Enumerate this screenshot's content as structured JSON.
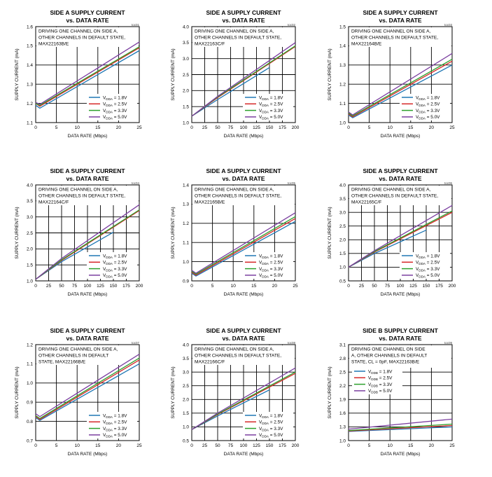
{
  "chart_data": [
    {
      "type": "line",
      "title": "SIDE A SUPPLY CURRENT",
      "subtitle": "vs. DATA RATE",
      "tag": "toc01",
      "annotation": [
        "DRIVING ONE CHANNEL ON  SIDE A,",
        "OTHER CHANNELS IN DEFAULT STATE,",
        "MAX22163B/E"
      ],
      "xlabel": "DATA RATE (Mbps)",
      "ylabel": "SUPPLY CURRENT (mA)",
      "xlim": [
        0,
        25
      ],
      "ylim": [
        1.1,
        1.6
      ],
      "xticks": [
        "0",
        "5",
        "10",
        "15",
        "20",
        "25"
      ],
      "yticks": [
        "1.1",
        "1.2",
        "1.3",
        "1.4",
        "1.5",
        "1.6"
      ],
      "series": [
        {
          "name": "VDDA = 1.8V",
          "sub": "DDA",
          "val": "1.8V",
          "color": "#1f77b4",
          "x": [
            0,
            1,
            25
          ],
          "y": [
            1.19,
            1.175,
            1.475
          ]
        },
        {
          "name": "VDDA = 2.5V",
          "sub": "DDA",
          "val": "2.5V",
          "color": "#d62728",
          "x": [
            0,
            1,
            25
          ],
          "y": [
            1.2,
            1.185,
            1.49
          ]
        },
        {
          "name": "VDDA = 3.3V",
          "sub": "DDA",
          "val": "3.3V",
          "color": "#2ca02c",
          "x": [
            0,
            1,
            25
          ],
          "y": [
            1.2,
            1.19,
            1.495
          ]
        },
        {
          "name": "VDDA = 5.0V",
          "sub": "DDA",
          "val": "5.0V",
          "color": "#7b3fa0",
          "x": [
            0,
            1,
            25
          ],
          "y": [
            1.205,
            1.195,
            1.52
          ]
        }
      ]
    },
    {
      "type": "line",
      "title": "SIDE A SUPPLY CURRENT",
      "subtitle": "vs. DATA RATE",
      "tag": "toc02",
      "annotation": [
        "DRIVING ONE CHANNEL ON  SIDE A,",
        "OTHER CHANNELS IN DEFAULT STATE,",
        "MAX22163C/F"
      ],
      "xlabel": "DATA RATE (Mbps)",
      "ylabel": "SUPPLY CURRENT (mA)",
      "xlim": [
        0,
        200
      ],
      "ylim": [
        1.0,
        4.0
      ],
      "xticks": [
        "0",
        "25",
        "50",
        "75",
        "100",
        "125",
        "150",
        "175",
        "200"
      ],
      "yticks": [
        "1.0",
        "1.5",
        "2.0",
        "2.5",
        "3.0",
        "3.5",
        "4.0"
      ],
      "series": [
        {
          "name": "VDDA = 1.8V",
          "sub": "DDA",
          "val": "1.8V",
          "color": "#1f77b4",
          "x": [
            0,
            50,
            150
          ],
          "y": [
            1.2,
            1.72,
            2.72
          ]
        },
        {
          "name": "VDDA = 2.5V",
          "sub": "DDA",
          "val": "2.5V",
          "color": "#d62728",
          "x": [
            0,
            50,
            200
          ],
          "y": [
            1.2,
            1.78,
            3.38
          ]
        },
        {
          "name": "VDDA = 3.3V",
          "sub": "DDA",
          "val": "3.3V",
          "color": "#2ca02c",
          "x": [
            0,
            50,
            200
          ],
          "y": [
            1.2,
            1.8,
            3.4
          ]
        },
        {
          "name": "VDDA = 5.0V",
          "sub": "DDA",
          "val": "5.0V",
          "color": "#7b3fa0",
          "x": [
            0,
            50,
            200
          ],
          "y": [
            1.2,
            1.82,
            3.5
          ]
        }
      ]
    },
    {
      "type": "line",
      "title": "SIDE A SUPPLY CURRENT",
      "subtitle": "vs. DATA RATE",
      "tag": "toc03",
      "annotation": [
        "DRIVING ONE CHANNEL ON  SIDE A,",
        "OTHER CHANNELS IN DEFAULT STATE,",
        "MAX22164B/E"
      ],
      "xlabel": "DATA RATE (Mbps)",
      "ylabel": "SUPPLY CURRENT (mA)",
      "xlim": [
        0,
        25
      ],
      "ylim": [
        1.0,
        1.5
      ],
      "xticks": [
        "0",
        "5",
        "10",
        "15",
        "20",
        "25"
      ],
      "yticks": [
        "1.0",
        "1.1",
        "1.2",
        "1.3",
        "1.4",
        "1.5"
      ],
      "series": [
        {
          "name": "VDDA = 1.8V",
          "sub": "DDA",
          "val": "1.8V",
          "color": "#1f77b4",
          "x": [
            0,
            1,
            25
          ],
          "y": [
            1.04,
            1.025,
            1.3
          ]
        },
        {
          "name": "VDDA = 2.5V",
          "sub": "DDA",
          "val": "2.5V",
          "color": "#d62728",
          "x": [
            0,
            1,
            25
          ],
          "y": [
            1.045,
            1.03,
            1.32
          ]
        },
        {
          "name": "VDDA = 3.3V",
          "sub": "DDA",
          "val": "3.3V",
          "color": "#2ca02c",
          "x": [
            0,
            1,
            25
          ],
          "y": [
            1.05,
            1.035,
            1.33
          ]
        },
        {
          "name": "VDDA = 5.0V",
          "sub": "DDA",
          "val": "5.0V",
          "color": "#7b3fa0",
          "x": [
            0,
            1,
            25
          ],
          "y": [
            1.055,
            1.04,
            1.36
          ]
        }
      ]
    },
    {
      "type": "line",
      "title": "SIDE A SUPPLY CURRENT",
      "subtitle": "vs. DATA RATE",
      "tag": "toc04",
      "annotation": [
        "DRIVING ONE CHANNEL ON  SIDE A,",
        "OTHER CHANNELS IN DEFAULT STATE,",
        "MAX22164C/F"
      ],
      "xlabel": "DATA RATE (Mbps)",
      "ylabel": "SUPPLY CURRENT (mA)",
      "xlim": [
        0,
        200
      ],
      "ylim": [
        1.0,
        4.0
      ],
      "xticks": [
        "0",
        "25",
        "50",
        "75",
        "100",
        "125",
        "150",
        "175",
        "200"
      ],
      "yticks": [
        "1.0",
        "1.5",
        "2.0",
        "2.5",
        "3.0",
        "3.5",
        "4.0"
      ],
      "series": [
        {
          "name": "VDDA = 1.8V",
          "sub": "DDA",
          "val": "1.8V",
          "color": "#1f77b4",
          "x": [
            0,
            50,
            150
          ],
          "y": [
            1.05,
            1.6,
            2.52
          ]
        },
        {
          "name": "VDDA = 2.5V",
          "sub": "DDA",
          "val": "2.5V",
          "color": "#d62728",
          "x": [
            0,
            50,
            200
          ],
          "y": [
            1.05,
            1.64,
            3.2
          ]
        },
        {
          "name": "VDDA = 3.3V",
          "sub": "DDA",
          "val": "3.3V",
          "color": "#2ca02c",
          "x": [
            0,
            50,
            200
          ],
          "y": [
            1.05,
            1.66,
            3.22
          ]
        },
        {
          "name": "VDDA = 5.0V",
          "sub": "DDA",
          "val": "5.0V",
          "color": "#7b3fa0",
          "x": [
            0,
            50,
            200
          ],
          "y": [
            1.05,
            1.7,
            3.38
          ]
        }
      ]
    },
    {
      "type": "line",
      "title": "SIDE A SUPPLY CURRENT",
      "subtitle": "vs. DATA RATE",
      "tag": "toc05",
      "annotation": [
        "DRIVING ONE CHANNEL ON  SIDE A,",
        "OTHER CHANNELS IN DEFAULT STATE,",
        "MAX22165B/E"
      ],
      "xlabel": "DATA RATE (Mbps)",
      "ylabel": "SUPPLY CURRENT (mA)",
      "xlim": [
        0,
        25
      ],
      "ylim": [
        0.9,
        1.4
      ],
      "xticks": [
        "0",
        "5",
        "10",
        "15",
        "20",
        "25"
      ],
      "yticks": [
        "0.9",
        "1.0",
        "1.1",
        "1.2",
        "1.3",
        "1.4"
      ],
      "series": [
        {
          "name": "VDDA = 1.8V",
          "sub": "DDA",
          "val": "1.8V",
          "color": "#1f77b4",
          "x": [
            0,
            1,
            25
          ],
          "y": [
            0.94,
            0.925,
            1.21
          ]
        },
        {
          "name": "VDDA = 2.5V",
          "sub": "DDA",
          "val": "2.5V",
          "color": "#d62728",
          "x": [
            0,
            1,
            25
          ],
          "y": [
            0.945,
            0.93,
            1.225
          ]
        },
        {
          "name": "VDDA = 3.3V",
          "sub": "DDA",
          "val": "3.3V",
          "color": "#2ca02c",
          "x": [
            0,
            1,
            25
          ],
          "y": [
            0.95,
            0.935,
            1.235
          ]
        },
        {
          "name": "VDDA = 5.0V",
          "sub": "DDA",
          "val": "5.0V",
          "color": "#7b3fa0",
          "x": [
            0,
            1,
            25
          ],
          "y": [
            0.955,
            0.94,
            1.255
          ]
        }
      ]
    },
    {
      "type": "line",
      "title": "SIDE A SUPPLY CURRENT",
      "subtitle": "vs. DATA RATE",
      "tag": "toc06",
      "annotation": [
        "DRIVING ONE CHANNEL ON  SIDE A,",
        "OTHER CHANNELS IN DEFAULT STATE,",
        "MAX22165C/F"
      ],
      "xlabel": "DATA RATE (Mbps)",
      "ylabel": "SUPPLY CURRENT (mA)",
      "xlim": [
        0,
        200
      ],
      "ylim": [
        0.5,
        4.0
      ],
      "xticks": [
        "0",
        "25",
        "50",
        "75",
        "100",
        "125",
        "150",
        "175",
        "200"
      ],
      "yticks": [
        "0.5",
        "1.0",
        "1.5",
        "2.0",
        "2.5",
        "3.0",
        "3.5",
        "4.0"
      ],
      "series": [
        {
          "name": "VDDA = 1.8V",
          "sub": "DDA",
          "val": "1.8V",
          "color": "#1f77b4",
          "x": [
            0,
            50,
            150
          ],
          "y": [
            1.0,
            1.5,
            2.35
          ]
        },
        {
          "name": "VDDA = 2.5V",
          "sub": "DDA",
          "val": "2.5V",
          "color": "#d62728",
          "x": [
            0,
            50,
            200
          ],
          "y": [
            1.0,
            1.55,
            3.0
          ]
        },
        {
          "name": "VDDA = 3.3V",
          "sub": "DDA",
          "val": "3.3V",
          "color": "#2ca02c",
          "x": [
            0,
            50,
            200
          ],
          "y": [
            1.0,
            1.57,
            3.05
          ]
        },
        {
          "name": "VDDA = 5.0V",
          "sub": "DDA",
          "val": "5.0V",
          "color": "#7b3fa0",
          "x": [
            0,
            50,
            200
          ],
          "y": [
            1.0,
            1.6,
            3.25
          ]
        }
      ]
    },
    {
      "type": "line",
      "title": "SIDE A SUPPLY CURRENT",
      "subtitle": "vs. DATA RATE",
      "tag": "toc07",
      "annotation": [
        "DRIVING ONE CHANNEL ON  SIDE A,",
        "OTHER CHANNELS IN DEFAULT",
        "STATE, MAX22166B/E"
      ],
      "xlabel": "DATA RATE (Mbps)",
      "ylabel": "SUPPLY CURRENT (mA)",
      "xlim": [
        0,
        25
      ],
      "ylim": [
        0.7,
        1.2
      ],
      "xticks": [
        "0",
        "5",
        "10",
        "15",
        "20",
        "25"
      ],
      "yticks": [
        "0.7",
        "0.8",
        "0.9",
        "1.0",
        "1.1",
        "1.2"
      ],
      "series": [
        {
          "name": "VDDA = 1.8V",
          "sub": "DDA",
          "val": "1.8V",
          "color": "#1f77b4",
          "x": [
            0,
            1,
            25
          ],
          "y": [
            0.82,
            0.805,
            1.1
          ]
        },
        {
          "name": "VDDA = 2.5V",
          "sub": "DDA",
          "val": "2.5V",
          "color": "#d62728",
          "x": [
            0,
            1,
            25
          ],
          "y": [
            0.825,
            0.81,
            1.12
          ]
        },
        {
          "name": "VDDA = 3.3V",
          "sub": "DDA",
          "val": "3.3V",
          "color": "#2ca02c",
          "x": [
            0,
            1,
            25
          ],
          "y": [
            0.83,
            0.815,
            1.13
          ]
        },
        {
          "name": "VDDA = 5.0V",
          "sub": "DDA",
          "val": "5.0V",
          "color": "#7b3fa0",
          "x": [
            0,
            1,
            25
          ],
          "y": [
            0.84,
            0.825,
            1.15
          ]
        }
      ]
    },
    {
      "type": "line",
      "title": "SIDE A SUPPLY CURRENT",
      "subtitle": "vs. DATA RATE",
      "tag": "toc08",
      "annotation": [
        "DRIVING ONE CHANNEL ON  SIDE A,",
        "OTHER CHANNELS IN DEFAULT STATE,",
        "MAX22166C/F"
      ],
      "xlabel": "DATA RATE (Mbps)",
      "ylabel": "SUPPLY CURRENT (mA)",
      "xlim": [
        0,
        200
      ],
      "ylim": [
        0.5,
        4.0
      ],
      "xticks": [
        "0",
        "25",
        "50",
        "75",
        "100",
        "125",
        "150",
        "175",
        "200"
      ],
      "yticks": [
        "0.5",
        "1.0",
        "1.5",
        "2.0",
        "2.5",
        "3.0",
        "3.5",
        "4.0"
      ],
      "series": [
        {
          "name": "VDDA = 1.8V",
          "sub": "DDA",
          "val": "1.8V",
          "color": "#1f77b4",
          "x": [
            0,
            50,
            150
          ],
          "y": [
            0.9,
            1.4,
            2.35
          ]
        },
        {
          "name": "VDDA = 2.5V",
          "sub": "DDA",
          "val": "2.5V",
          "color": "#d62728",
          "x": [
            0,
            50,
            200
          ],
          "y": [
            0.9,
            1.45,
            2.95
          ]
        },
        {
          "name": "VDDA = 3.3V",
          "sub": "DDA",
          "val": "3.3V",
          "color": "#2ca02c",
          "x": [
            0,
            50,
            200
          ],
          "y": [
            0.9,
            1.47,
            3.0
          ]
        },
        {
          "name": "VDDA = 5.0V",
          "sub": "DDA",
          "val": "5.0V",
          "color": "#7b3fa0",
          "x": [
            0,
            50,
            200
          ],
          "y": [
            0.9,
            1.5,
            3.15
          ]
        }
      ]
    },
    {
      "type": "line",
      "title": "SIDE B SUPPLY CURRENT",
      "subtitle": "vs. DATA RATE",
      "tag": "toc09",
      "annotation": [
        "DRIVING ONE CHANNEL ON  SIDE",
        "A, OTHER CHANNELS IN DEFAULT",
        "STATE, CL = 0pF, MAX22163B/E"
      ],
      "legend_pos": "top-left",
      "xlabel": "DATA RATE (Mbps)",
      "ylabel": "SUPPLY CURRENT (mA)",
      "xlim": [
        0,
        25
      ],
      "ylim": [
        1.0,
        3.1
      ],
      "xticks": [
        "0",
        "5",
        "10",
        "15",
        "20",
        "25"
      ],
      "yticks": [
        "1.0",
        "1.3",
        "1.6",
        "1.9",
        "2.2",
        "2.5",
        "2.8",
        "3.1"
      ],
      "series": [
        {
          "name": "VDDB = 1.8V",
          "sub": "DDB",
          "val": "1.8V",
          "color": "#1f77b4",
          "x": [
            0,
            25
          ],
          "y": [
            1.2,
            1.3
          ]
        },
        {
          "name": "VDDB = 2.5V",
          "sub": "DDB",
          "val": "2.5V",
          "color": "#d62728",
          "x": [
            0,
            25
          ],
          "y": [
            1.21,
            1.33
          ]
        },
        {
          "name": "VDDB = 3.3V",
          "sub": "DDB",
          "val": "3.3V",
          "color": "#2ca02c",
          "x": [
            0,
            25
          ],
          "y": [
            1.22,
            1.36
          ]
        },
        {
          "name": "VDDB = 5.0V",
          "sub": "DDB",
          "val": "5.0V",
          "color": "#7b3fa0",
          "x": [
            0,
            25
          ],
          "y": [
            1.25,
            1.47
          ]
        }
      ]
    }
  ]
}
